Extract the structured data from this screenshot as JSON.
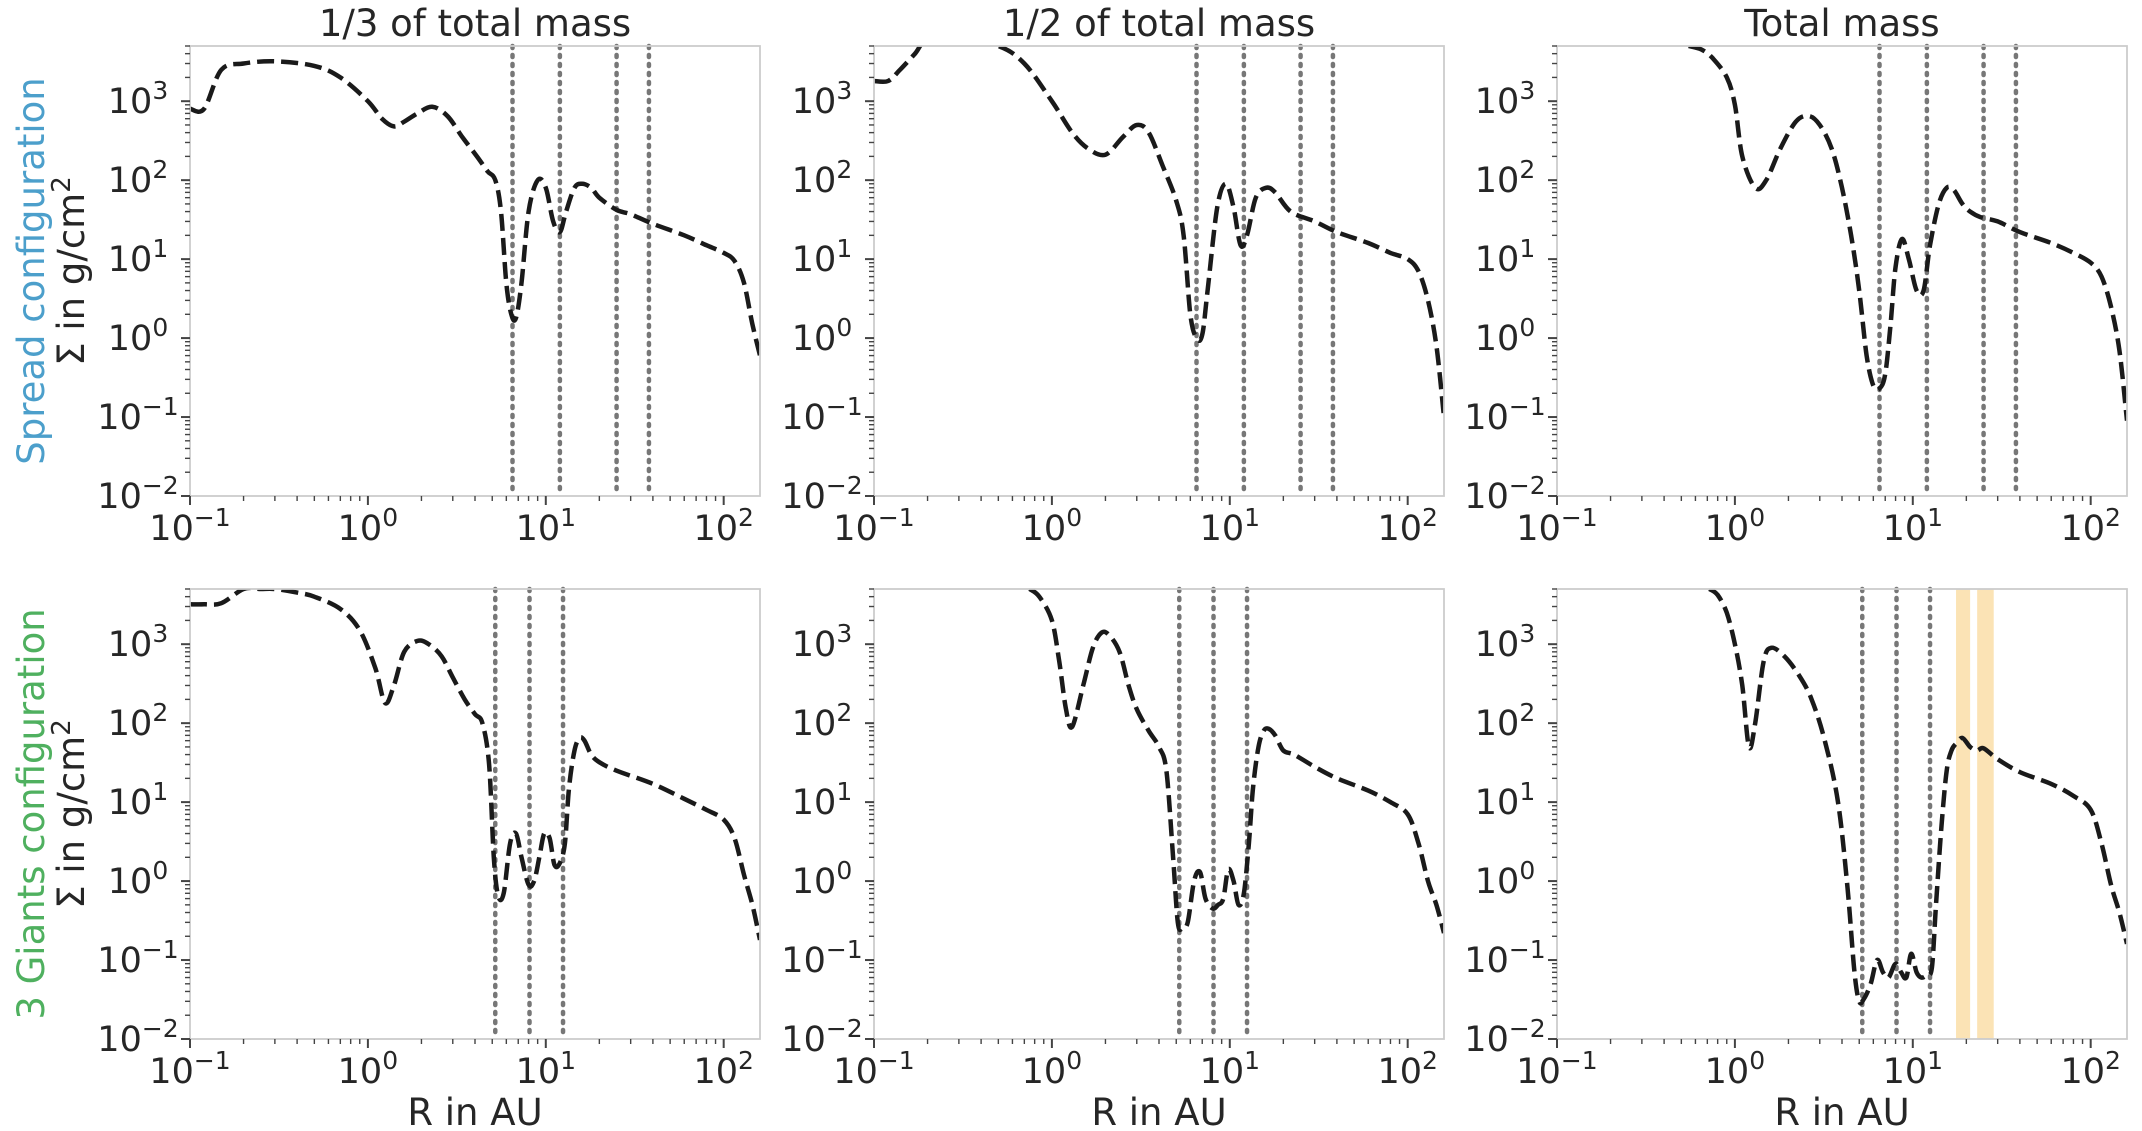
{
  "figure": {
    "column_titles": [
      "1/3 of total mass",
      "1/2 of total mass",
      "Total mass"
    ],
    "row_labels": [
      {
        "config": "Spread configuration",
        "quantity": "Σ in g/cm",
        "superscript": "2",
        "color": "#4c9fcb"
      },
      {
        "config": "3 Giants configuration",
        "quantity": "Σ in g/cm",
        "superscript": "2",
        "color": "#4fb05f"
      }
    ],
    "xlabel": "R in AU",
    "line_color": "#1a1a1a",
    "planet_line_color": "#777777",
    "band_color": "#fbe3b5"
  },
  "chart_data": {
    "type": "line",
    "xscale": "log",
    "yscale": "log",
    "xlim": [
      0.1,
      160
    ],
    "ylim": [
      0.01,
      5000
    ],
    "xticks": [
      {
        "base": "10",
        "exp": "−1"
      },
      {
        "base": "10",
        "exp": "0"
      },
      {
        "base": "10",
        "exp": "1"
      },
      {
        "base": "10",
        "exp": "2"
      }
    ],
    "yticks": [
      {
        "base": "10",
        "exp": "−2"
      },
      {
        "base": "10",
        "exp": "−1"
      },
      {
        "base": "10",
        "exp": "0"
      },
      {
        "base": "10",
        "exp": "1"
      },
      {
        "base": "10",
        "exp": "2"
      },
      {
        "base": "10",
        "exp": "3"
      }
    ],
    "panels": [
      {
        "row": 0,
        "col": 0,
        "planet_radii": [
          6.5,
          12,
          25,
          38
        ],
        "bands": [],
        "series": [
          {
            "x": [
              0.1,
              0.12,
              0.15,
              0.2,
              0.3,
              0.5,
              0.7,
              1.0,
              1.2,
              1.4,
              1.6,
              1.9,
              2.3,
              2.8,
              3.4,
              4.1,
              4.7,
              5.2,
              5.6,
              6.0,
              6.4,
              6.8,
              7.3,
              8.0,
              9.0,
              10.0,
              11.0,
              12.0,
              13.0,
              14.5,
              16.0,
              18.0,
              20.0,
              25.0,
              30.0,
              40.0,
              60.0,
              80.0,
              100.0,
              115.0,
              130.0,
              145.0,
              160.0
            ],
            "y": [
              800,
              800,
              2500,
              3000,
              3200,
              2800,
              2000,
              1000,
              600,
              480,
              550,
              700,
              850,
              650,
              350,
              200,
              130,
              100,
              40,
              5,
              2,
              1.8,
              5,
              40,
              100,
              80,
              30,
              22,
              40,
              80,
              90,
              80,
              60,
              42,
              37,
              28,
              20,
              15,
              12,
              9.5,
              5,
              1.5,
              0.6
            ]
          }
        ]
      },
      {
        "row": 0,
        "col": 1,
        "planet_radii": [
          6.5,
          12,
          25,
          38
        ],
        "bands": [],
        "series": [
          {
            "x": [
              0.1,
              0.12,
              0.14,
              0.17,
              0.2,
              0.3,
              0.5,
              0.7,
              1.0,
              1.3,
              1.6,
              2.0,
              2.5,
              3.0,
              3.5,
              4.2,
              5.0,
              5.5,
              6.0,
              6.5,
              7.0,
              7.5,
              8.5,
              9.5,
              10.5,
              11.5,
              12.5,
              14.0,
              16.0,
              18.0,
              22.0,
              30.0,
              40.0,
              60.0,
              80.0,
              100.0,
              115.0,
              130.0,
              145.0,
              160.0
            ],
            "y": [
              1800,
              1800,
              2500,
              4000,
              6000,
              6000,
              5000,
              3000,
              1000,
              400,
              250,
              210,
              350,
              500,
              400,
              150,
              55,
              20,
              2,
              1,
              1.1,
              4,
              45,
              90,
              45,
              15,
              20,
              60,
              80,
              70,
              40,
              30,
              22,
              16,
              12,
              10,
              7,
              3,
              0.8,
              0.1
            ]
          }
        ]
      },
      {
        "row": 0,
        "col": 2,
        "planet_radii": [
          6.5,
          12,
          25,
          38
        ],
        "bands": [],
        "series": [
          {
            "x": [
              0.55,
              0.65,
              0.75,
              0.9,
              1.0,
              1.1,
              1.3,
              1.5,
              1.8,
              2.2,
              2.6,
              3.0,
              3.5,
              4.0,
              4.5,
              5.0,
              5.5,
              6.0,
              6.5,
              7.0,
              7.5,
              8.0,
              8.7,
              9.5,
              10.5,
              11.5,
              12.5,
              14.0,
              15.5,
              17.0,
              19.0,
              21.0,
              24.0,
              30.0,
              40.0,
              60.0,
              80.0,
              100.0,
              115.0,
              130.0,
              145.0,
              160.0
            ],
            "y": [
              5000,
              4500,
              3500,
              2000,
              900,
              200,
              80,
              100,
              250,
              550,
              650,
              500,
              250,
              80,
              20,
              4,
              0.6,
              0.25,
              0.23,
              0.35,
              1.5,
              8,
              18,
              10,
              4,
              4,
              15,
              50,
              80,
              75,
              50,
              40,
              34,
              30,
              22,
              16,
              12,
              9,
              6,
              2.5,
              0.7,
              0.09
            ]
          }
        ]
      },
      {
        "row": 1,
        "col": 0,
        "planet_radii": [
          5.2,
          8.1,
          12.5
        ],
        "bands": [],
        "series": [
          {
            "x": [
              0.1,
              0.12,
              0.15,
              0.2,
              0.25,
              0.3,
              0.4,
              0.5,
              0.7,
              0.9,
              1.1,
              1.25,
              1.4,
              1.6,
              1.9,
              2.2,
              2.6,
              3.0,
              3.5,
              4.0,
              4.4,
              4.8,
              5.1,
              5.4,
              5.8,
              6.3,
              6.8,
              7.3,
              8.0,
              8.6,
              9.2,
              9.8,
              10.5,
              11.2,
              12.0,
              12.8,
              13.5,
              14.5,
              15.5,
              16.5,
              18.0,
              20.0,
              25.0,
              40.0,
              60.0,
              80.0,
              100.0,
              115.0,
              130.0,
              145.0,
              160.0
            ],
            "y": [
              3200,
              3200,
              3300,
              5000,
              5000,
              5000,
              4500,
              4000,
              2800,
              1500,
              500,
              180,
              300,
              800,
              1100,
              1000,
              700,
              380,
              200,
              130,
              100,
              30,
              2,
              0.65,
              0.7,
              3,
              4,
              2,
              0.9,
              1.0,
              2,
              4,
              3.5,
              1.6,
              1.7,
              3,
              15,
              45,
              65,
              60,
              40,
              32,
              25,
              17,
              11,
              8,
              6,
              3.5,
              1.2,
              0.5,
              0.18
            ]
          }
        ]
      },
      {
        "row": 1,
        "col": 1,
        "planet_radii": [
          5.2,
          8.1,
          12.5
        ],
        "bands": [],
        "series": [
          {
            "x": [
              0.75,
              0.85,
              1.0,
              1.1,
              1.2,
              1.3,
              1.5,
              1.7,
              1.9,
              2.1,
              2.4,
              2.7,
              3.0,
              3.5,
              4.0,
              4.4,
              4.8,
              5.1,
              5.4,
              5.8,
              6.3,
              6.8,
              7.3,
              8.0,
              8.6,
              9.2,
              9.8,
              10.5,
              11.2,
              12.0,
              12.8,
              13.5,
              14.5,
              15.5,
              16.5,
              18.0,
              20.0,
              23.0,
              30.0,
              40.0,
              60.0,
              80.0,
              100.0,
              115.0,
              130.0,
              145.0,
              160.0
            ],
            "y": [
              5000,
              4000,
              2000,
              600,
              150,
              90,
              300,
              900,
              1400,
              1300,
              800,
              300,
              150,
              80,
              50,
              25,
              2,
              0.3,
              0.25,
              0.3,
              1,
              1.3,
              0.6,
              0.45,
              0.5,
              0.6,
              1.4,
              1.0,
              0.5,
              0.7,
              3,
              15,
              50,
              80,
              85,
              70,
              45,
              40,
              28,
              20,
              14,
              10,
              7,
              3,
              1,
              0.5,
              0.22
            ]
          }
        ]
      },
      {
        "row": 1,
        "col": 2,
        "planet_radii": [
          5.2,
          8.1,
          12.5
        ],
        "bands": [
          [
            17.5,
            21
          ],
          [
            23,
            28.5
          ]
        ],
        "series": [
          {
            "x": [
              0.72,
              0.8,
              0.9,
              1.0,
              1.1,
              1.2,
              1.3,
              1.45,
              1.6,
              1.9,
              2.3,
              2.7,
              3.2,
              3.8,
              4.3,
              4.7,
              5.0,
              5.3,
              5.8,
              6.3,
              6.8,
              7.3,
              8.0,
              8.6,
              9.2,
              9.8,
              10.5,
              11.2,
              12.0,
              12.8,
              13.5,
              14.5,
              15.5,
              16.5,
              17.5,
              19.0,
              21.0,
              23.0,
              25.0,
              30.0,
              40.0,
              60.0,
              80.0,
              100.0,
              115.0,
              130.0,
              145.0,
              160.0
            ],
            "y": [
              5000,
              4200,
              2500,
              1000,
              300,
              50,
              100,
              600,
              900,
              700,
              400,
              200,
              60,
              10,
              0.8,
              0.07,
              0.03,
              0.032,
              0.05,
              0.1,
              0.07,
              0.06,
              0.09,
              0.07,
              0.06,
              0.12,
              0.07,
              0.06,
              0.065,
              0.08,
              0.5,
              5,
              25,
              45,
              55,
              65,
              50,
              45,
              48,
              35,
              24,
              17,
              12,
              8,
              3,
              0.9,
              0.4,
              0.16
            ]
          }
        ]
      }
    ]
  }
}
